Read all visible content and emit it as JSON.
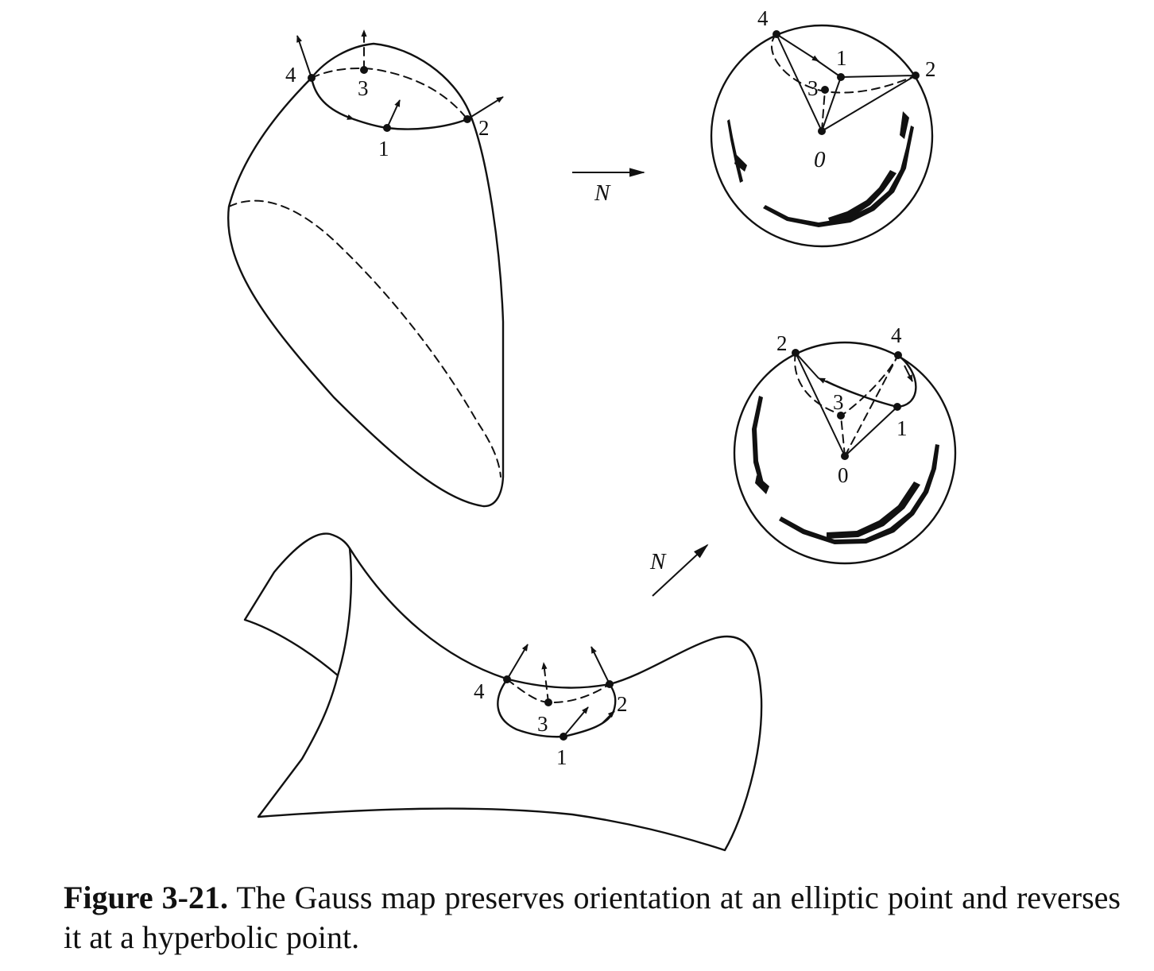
{
  "figure": {
    "elliptic": {
      "surface_points": [
        "1",
        "2",
        "3",
        "4"
      ],
      "sphere_points": [
        "1",
        "2",
        "3",
        "4"
      ],
      "sphere_origin": "0"
    },
    "hyperbolic": {
      "surface_points": [
        "1",
        "2",
        "3",
        "4"
      ],
      "sphere_points": [
        "1",
        "2",
        "3",
        "4"
      ],
      "sphere_origin": "0"
    },
    "map_label_top": "N",
    "map_label_bottom": "N"
  },
  "caption": {
    "label": "Figure 3-21.",
    "text": "The Gauss map preserves orientation at an elliptic point and reverses it at a hyperbolic point."
  }
}
